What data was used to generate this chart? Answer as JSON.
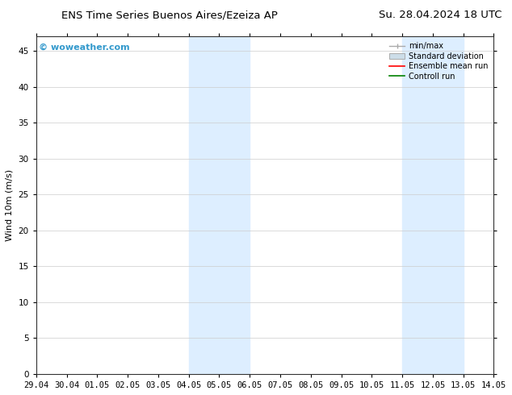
{
  "title_left": "ENS Time Series Buenos Aires/Ezeiza AP",
  "title_right": "Su. 28.04.2024 18 UTC",
  "ylabel": "Wind 10m (m/s)",
  "watermark": "© woweather.com",
  "x_tick_labels": [
    "29.04",
    "30.04",
    "01.05",
    "02.05",
    "03.05",
    "04.05",
    "05.05",
    "06.05",
    "07.05",
    "08.05",
    "09.05",
    "10.05",
    "11.05",
    "12.05",
    "13.05",
    "14.05"
  ],
  "x_tick_positions": [
    0,
    1,
    2,
    3,
    4,
    5,
    6,
    7,
    8,
    9,
    10,
    11,
    12,
    13,
    14,
    15
  ],
  "ylim": [
    0,
    47
  ],
  "yticks": [
    0,
    5,
    10,
    15,
    20,
    25,
    30,
    35,
    40,
    45
  ],
  "shaded_bands": [
    {
      "x_start": 5,
      "x_end": 7,
      "color": "#ddeeff"
    },
    {
      "x_start": 12,
      "x_end": 14,
      "color": "#ddeeff"
    }
  ],
  "legend_entries": [
    {
      "label": "min/max",
      "color": "#aaaaaa",
      "style": "errorbar"
    },
    {
      "label": "Standard deviation",
      "color": "#ccdde8",
      "style": "box"
    },
    {
      "label": "Ensemble mean run",
      "color": "red",
      "style": "line"
    },
    {
      "label": "Controll run",
      "color": "green",
      "style": "line"
    }
  ],
  "bg_color": "#ffffff",
  "plot_bg_color": "#ffffff",
  "title_fontsize": 9.5,
  "tick_fontsize": 7.5,
  "ylabel_fontsize": 8,
  "legend_fontsize": 7,
  "watermark_color": "#3399cc",
  "watermark_fontsize": 8
}
